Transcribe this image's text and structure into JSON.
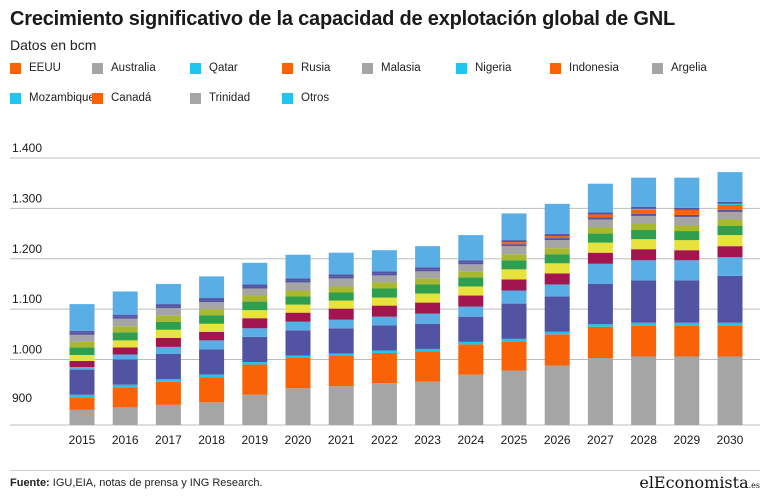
{
  "header": {
    "title": "Crecimiento significativo de la capacidad de explotación global de GNL",
    "subtitle": "Datos en bcm"
  },
  "footer": {
    "source_label": "Fuente:",
    "source_text": " IGU,EIA, notas de prensa y ING Research.",
    "brand": "elEconomista",
    "brand_suffix": ".es"
  },
  "colors": {
    "orange": "#fa6208",
    "gray": "#a5a5a5",
    "cyan": "#21c4ef",
    "olive": "#a9b82e",
    "purple": "#5254a3",
    "green": "#2e9e4f",
    "yellow": "#e8e23c",
    "crimson": "#a3154f",
    "lightblue": "#5aaee6"
  },
  "chart_data": {
    "type": "bar",
    "stacked": true,
    "categories": [
      "2015",
      "2016",
      "2017",
      "2018",
      "2019",
      "2020",
      "2021",
      "2022",
      "2023",
      "2024",
      "2025",
      "2026",
      "2027",
      "2028",
      "2029",
      "2030"
    ],
    "y_tick_labels": [
      "900",
      "1.000",
      "1.100",
      "1.200",
      "1.300",
      "1.400"
    ],
    "ylim": [
      870,
      1400
    ],
    "grid": true,
    "legend": [
      {
        "name": "EEUU",
        "color": "#fa6208"
      },
      {
        "name": "Australia",
        "color": "#a5a5a5"
      },
      {
        "name": "Qatar",
        "color": "#21c4ef"
      },
      {
        "name": "Rusia",
        "color": "#fa6208"
      },
      {
        "name": "Malasia",
        "color": "#a5a5a5"
      },
      {
        "name": "Nigeria",
        "color": "#21c4ef"
      },
      {
        "name": "Indonesia",
        "color": "#fa6208"
      },
      {
        "name": "Argelia",
        "color": "#a5a5a5"
      },
      {
        "name": "Mozambique",
        "color": "#21c4ef"
      },
      {
        "name": "Canadá",
        "color": "#fa6208"
      },
      {
        "name": "Trinidad",
        "color": "#a5a5a5"
      },
      {
        "name": "Otros",
        "color": "#21c4ef"
      }
    ],
    "segments": [
      {
        "color": "#a5a5a5",
        "values": [
          900,
          905,
          910,
          915,
          930,
          943,
          947,
          953,
          956,
          970,
          978,
          988,
          1003,
          1006,
          1006,
          1006
        ]
      },
      {
        "color": "#fa6208",
        "values": [
          25,
          40,
          46,
          50,
          60,
          60,
          60,
          60,
          60,
          60,
          58,
          62,
          62,
          62,
          62,
          62
        ]
      },
      {
        "color": "#21c4ef",
        "values": [
          5,
          5,
          5,
          5,
          5,
          5,
          5,
          5,
          5,
          5,
          5,
          5,
          5,
          5,
          5,
          5
        ]
      },
      {
        "color": "#5254a3",
        "values": [
          50,
          50,
          50,
          50,
          50,
          50,
          50,
          50,
          50,
          50,
          70,
          70,
          80,
          84,
          84,
          93
        ]
      },
      {
        "color": "#5aaee6",
        "values": [
          5,
          10,
          14,
          18,
          17,
          17,
          17,
          17,
          20,
          20,
          26,
          24,
          40,
          40,
          40,
          37
        ]
      },
      {
        "color": "#a3154f",
        "values": [
          12,
          14,
          18,
          17,
          20,
          18,
          22,
          22,
          22,
          22,
          22,
          22,
          22,
          22,
          20,
          22
        ]
      },
      {
        "color": "#e8e23c",
        "values": [
          12,
          14,
          16,
          16,
          16,
          16,
          16,
          16,
          18,
          18,
          20,
          20,
          20,
          20,
          20,
          22
        ]
      },
      {
        "color": "#2e9e4f",
        "values": [
          15,
          16,
          16,
          17,
          17,
          16,
          16,
          18,
          18,
          18,
          18,
          18,
          18,
          18,
          18,
          18
        ]
      },
      {
        "color": "#a9b82e",
        "values": [
          11,
          12,
          12,
          12,
          12,
          12,
          12,
          12,
          12,
          12,
          12,
          12,
          12,
          12,
          12,
          12
        ]
      },
      {
        "color": "#a5a5a5",
        "values": [
          14,
          15,
          15,
          14,
          14,
          16,
          16,
          14,
          14,
          14,
          16,
          16,
          16,
          16,
          16,
          16
        ]
      },
      {
        "color": "#5254a3",
        "values": [
          4,
          4,
          4,
          4,
          4,
          4,
          4,
          4,
          4,
          4,
          4,
          4,
          4,
          4,
          4,
          4
        ]
      },
      {
        "color": "#fa6208",
        "values": [
          0,
          0,
          0,
          0,
          0,
          0,
          0,
          0,
          0,
          0,
          4,
          4,
          6,
          8,
          10,
          10
        ]
      },
      {
        "color": "#21c4ef",
        "values": [
          0,
          0,
          0,
          0,
          0,
          0,
          0,
          0,
          0,
          0,
          0,
          0,
          0,
          2,
          0,
          2
        ]
      },
      {
        "color": "#5254a3",
        "values": [
          4,
          4,
          4,
          4,
          4,
          4,
          4,
          4,
          4,
          4,
          4,
          4,
          4,
          4,
          4,
          4
        ]
      },
      {
        "color": "#5aaee6",
        "values": [
          53,
          46,
          40,
          43,
          43,
          47,
          43,
          42,
          42,
          50,
          53,
          60,
          57,
          58,
          60,
          59
        ]
      }
    ]
  }
}
